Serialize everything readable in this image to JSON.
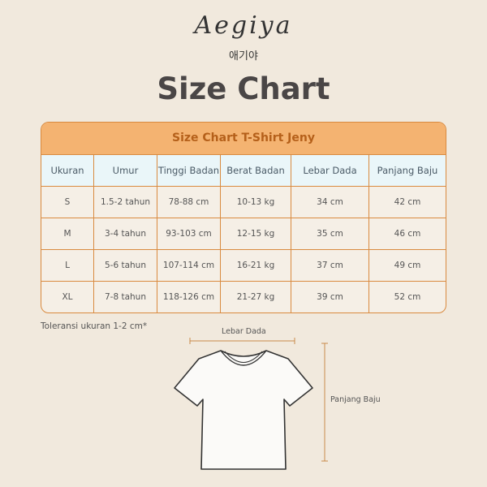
{
  "brand": {
    "name": "Aegiya",
    "korean": "애기야"
  },
  "title": "Size Chart",
  "table": {
    "title": "Size Chart T-Shirt Jeny",
    "headers": [
      "Ukuran",
      "Umur",
      "Tinggi Badan",
      "Berat Badan",
      "Lebar Dada",
      "Panjang Baju"
    ],
    "rows": [
      [
        "S",
        "1.5-2 tahun",
        "78-88 cm",
        "10-13 kg",
        "34 cm",
        "42 cm"
      ],
      [
        "M",
        "3-4 tahun",
        "93-103 cm",
        "12-15 kg",
        "35 cm",
        "46 cm"
      ],
      [
        "L",
        "5-6 tahun",
        "107-114 cm",
        "16-21  kg",
        "37 cm",
        "49 cm"
      ],
      [
        "XL",
        "7-8 tahun",
        "118-126 cm",
        "21-27 kg",
        "39 cm",
        "52 cm"
      ]
    ]
  },
  "note": "Toleransi ukuran 1-2 cm*",
  "diagram": {
    "width_label": "Lebar Dada",
    "length_label": "Panjang Baju"
  },
  "colors": {
    "background": "#f1e9dd",
    "header": "#f4b371",
    "border": "#d98a3f",
    "column_header": "#eaf6f9"
  }
}
